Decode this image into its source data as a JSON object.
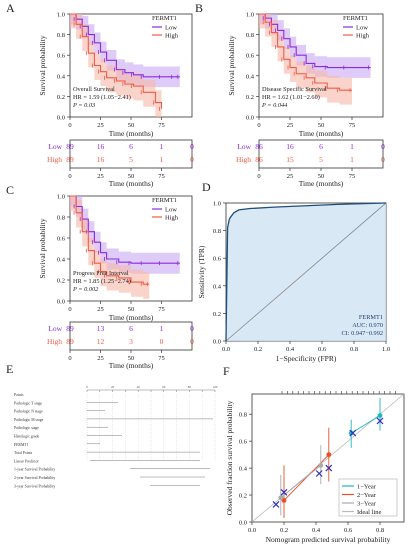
{
  "chart_data": [
    {
      "type": "line",
      "panel": "A",
      "ylabel": "Survival probability",
      "xlabel": "Time (months)",
      "legend_title": "FERMT1",
      "legend": [
        "Low",
        "High"
      ],
      "legend_position": "top-right",
      "xlim": [
        0,
        100
      ],
      "ylim": [
        0,
        1
      ],
      "xticks": [
        0,
        25,
        50,
        75
      ],
      "yticks": [
        0.0,
        0.2,
        0.4,
        0.6,
        0.8,
        1.0
      ],
      "annotation": [
        "Overall Survival",
        "HR = 1.59 (1.05−2.41)",
        "P = 0.03"
      ],
      "series": [
        {
          "name": "Low",
          "color": "#8a2be2",
          "x": [
            0,
            5,
            10,
            15,
            20,
            25,
            30,
            38,
            45,
            52,
            60,
            75,
            85,
            90
          ],
          "y": [
            1.0,
            0.95,
            0.88,
            0.8,
            0.72,
            0.63,
            0.55,
            0.46,
            0.43,
            0.41,
            0.39,
            0.39,
            0.39,
            0.39
          ]
        },
        {
          "name": "High",
          "color": "#f05a46",
          "x": [
            0,
            5,
            10,
            15,
            20,
            25,
            30,
            38,
            45,
            52,
            60,
            70,
            75
          ],
          "y": [
            1.0,
            0.9,
            0.78,
            0.62,
            0.5,
            0.44,
            0.38,
            0.35,
            0.32,
            0.3,
            0.24,
            0.14,
            0.08
          ]
        }
      ],
      "risk_table": {
        "times": [
          0,
          25,
          50,
          75,
          100
        ],
        "rows": [
          {
            "label": "Low",
            "values": [
              "89",
              "16",
              "6",
              "1",
              "0"
            ]
          },
          {
            "label": "High",
            "values": [
              "89",
              "16",
              "5",
              "1",
              "0"
            ]
          }
        ]
      }
    },
    {
      "type": "line",
      "panel": "B",
      "ylabel": "Survival probability",
      "xlabel": "Time (months)",
      "legend_title": "FERMT1",
      "legend": [
        "Low",
        "High"
      ],
      "legend_position": "top-right",
      "xlim": [
        0,
        100
      ],
      "ylim": [
        0,
        1
      ],
      "xticks": [
        0,
        25,
        50,
        75
      ],
      "yticks": [
        0.0,
        0.2,
        0.4,
        0.6,
        0.8,
        1.0
      ],
      "annotation": [
        "Disease Specific Survival",
        "HR = 1.62 (1.01−2.60)",
        "P = 0.044"
      ],
      "series": [
        {
          "name": "Low",
          "color": "#8a2be2",
          "x": [
            0,
            5,
            10,
            15,
            20,
            25,
            30,
            38,
            45,
            55,
            70,
            90
          ],
          "y": [
            1.0,
            0.96,
            0.9,
            0.84,
            0.76,
            0.68,
            0.6,
            0.52,
            0.49,
            0.48,
            0.48,
            0.48
          ]
        },
        {
          "name": "High",
          "color": "#f05a46",
          "x": [
            0,
            5,
            10,
            15,
            20,
            25,
            30,
            38,
            45,
            55,
            65,
            75
          ],
          "y": [
            1.0,
            0.92,
            0.82,
            0.68,
            0.56,
            0.48,
            0.42,
            0.38,
            0.33,
            0.28,
            0.26,
            0.26
          ]
        }
      ],
      "risk_table": {
        "times": [
          0,
          25,
          50,
          75,
          100
        ],
        "rows": [
          {
            "label": "Low",
            "values": [
              "86",
              "16",
              "6",
              "1",
              "0"
            ]
          },
          {
            "label": "High",
            "values": [
              "86",
              "15",
              "5",
              "1",
              "0"
            ]
          }
        ]
      }
    },
    {
      "type": "line",
      "panel": "C",
      "ylabel": "Survival probability",
      "xlabel": "Time (months)",
      "legend_title": "FERMT1",
      "legend": [
        "Low",
        "High"
      ],
      "legend_position": "top-right",
      "xlim": [
        0,
        100
      ],
      "ylim": [
        0,
        1
      ],
      "xticks": [
        0,
        25,
        50,
        75
      ],
      "yticks": [
        0.0,
        0.2,
        0.4,
        0.6,
        0.8,
        1.0
      ],
      "annotation": [
        "Progress Free Interval",
        "HR = 1.85 (1.25−2.74)",
        "P = 0.002"
      ],
      "series": [
        {
          "name": "Low",
          "color": "#8a2be2",
          "x": [
            0,
            5,
            10,
            15,
            20,
            25,
            30,
            40,
            50,
            60,
            75,
            90
          ],
          "y": [
            1.0,
            0.9,
            0.78,
            0.66,
            0.56,
            0.46,
            0.4,
            0.37,
            0.36,
            0.36,
            0.36,
            0.36
          ]
        },
        {
          "name": "High",
          "color": "#f05a46",
          "x": [
            0,
            5,
            10,
            15,
            20,
            25,
            30,
            40,
            50,
            60,
            65
          ],
          "y": [
            1.0,
            0.84,
            0.66,
            0.48,
            0.36,
            0.28,
            0.24,
            0.22,
            0.18,
            0.16,
            0.16
          ]
        }
      ],
      "risk_table": {
        "times": [
          0,
          25,
          50,
          75,
          100
        ],
        "rows": [
          {
            "label": "Low",
            "values": [
              "89",
              "13",
              "6",
              "1",
              "0"
            ]
          },
          {
            "label": "High",
            "values": [
              "89",
              "12",
              "3",
              "0",
              "0"
            ]
          }
        ]
      }
    },
    {
      "type": "area",
      "panel": "D",
      "xlabel": "1−Specificity (FPR)",
      "ylabel": "Sensitivity (TPR)",
      "xlim": [
        0,
        1
      ],
      "ylim": [
        0,
        1
      ],
      "xticks": [
        0.0,
        0.2,
        0.4,
        0.6,
        0.8,
        1.0
      ],
      "yticks": [
        0.0,
        0.2,
        0.4,
        0.6,
        0.8,
        1.0
      ],
      "annotation": [
        "FERMT1",
        "AUC: 0.970",
        "CI: 0.947−0.992"
      ],
      "series": [
        {
          "name": "FERMT1",
          "color": "#1f4e79",
          "x": [
            0,
            0.01,
            0.02,
            0.03,
            0.05,
            0.08,
            0.15,
            0.3,
            0.5,
            0.7,
            1.0
          ],
          "y": [
            0,
            0.82,
            0.88,
            0.9,
            0.93,
            0.95,
            0.96,
            0.97,
            0.98,
            0.99,
            1.0
          ]
        }
      ]
    },
    {
      "type": "table",
      "panel": "E",
      "rows": [
        "Points",
        "Pathologic T stage",
        "Pathologic N stage",
        "Pathologic M stage",
        "Pathologic stage",
        "Histologic grade",
        "FERMT1",
        "Total Points",
        "Linear Predictor",
        "1-year Survival Probability",
        "2-year Survival Probability",
        "3-year Survival Probability"
      ],
      "points_ticks": [
        "0",
        "10",
        "20",
        "30",
        "40",
        "50",
        "60",
        "70",
        "80",
        "90",
        "100"
      ]
    },
    {
      "type": "scatter",
      "panel": "F",
      "xlabel": "Nomogram predicted survival probability",
      "ylabel": "Observed fraction survival probability",
      "xlim": [
        0,
        1
      ],
      "ylim": [
        0,
        1
      ],
      "xticks": [
        0.0,
        0.2,
        0.4,
        0.6,
        0.8
      ],
      "yticks": [
        0.0,
        0.2,
        0.4,
        0.6,
        0.8
      ],
      "legend": [
        "1−Year",
        "2−Year",
        "3−Year",
        "Ideal line"
      ],
      "legend_position": "bottom-right",
      "series": [
        {
          "name": "1−Year",
          "color": "#1fb8b8",
          "x": [
            0.62,
            0.8
          ],
          "y": [
            0.66,
            0.79
          ],
          "err_low": [
            0.55,
            0.68
          ],
          "err_high": [
            0.76,
            0.92
          ]
        },
        {
          "name": "2−Year",
          "color": "#e8502a",
          "x": [
            0.2,
            0.48
          ],
          "y": [
            0.16,
            0.5
          ],
          "err_low": [
            0.03,
            0.3
          ],
          "err_high": [
            0.42,
            0.7
          ]
        },
        {
          "name": "3−Year",
          "color": "#aaaaaa",
          "x": [
            0.18,
            0.43
          ],
          "y": [
            0.18,
            0.42
          ],
          "err_low": [
            0.05,
            0.28
          ],
          "err_high": [
            0.35,
            0.57
          ]
        },
        {
          "name": "cross",
          "color": "#3030c0",
          "x": [
            0.15,
            0.2,
            0.42,
            0.48,
            0.63,
            0.8
          ],
          "y": [
            0.13,
            0.22,
            0.36,
            0.4,
            0.66,
            0.75
          ]
        }
      ]
    }
  ]
}
